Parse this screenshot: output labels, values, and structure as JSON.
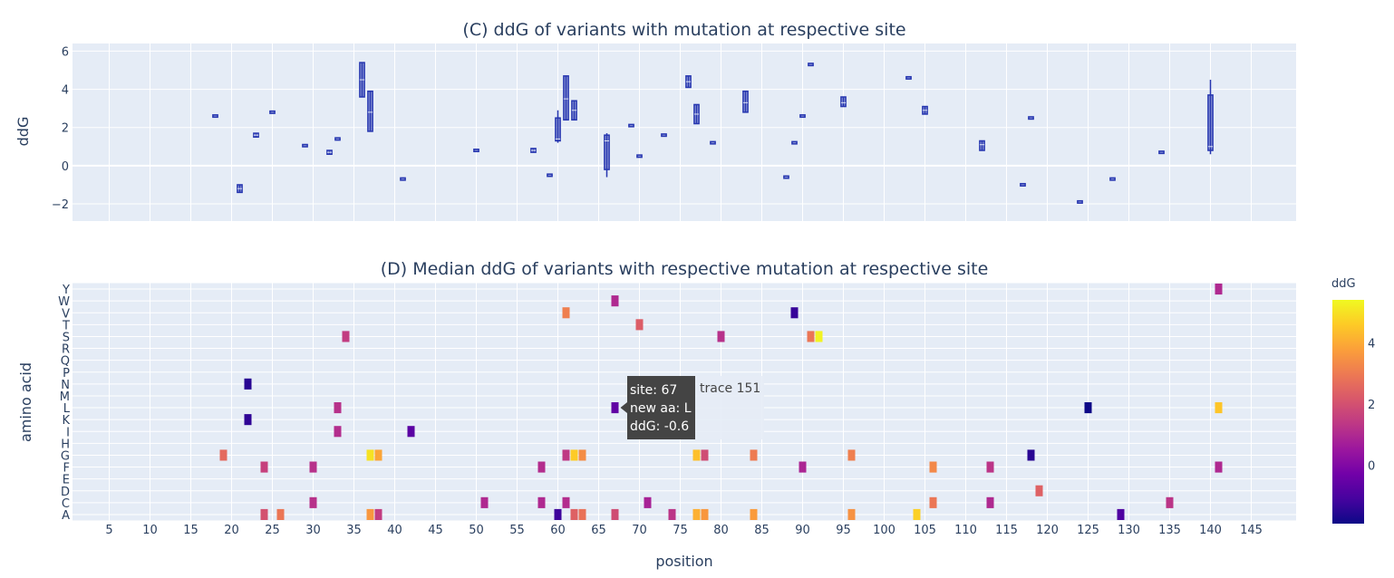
{
  "panel_c": {
    "title": "(C) ddG of variants with mutation at respective site",
    "ylabel": "ddG"
  },
  "panel_d": {
    "title": "(D) Median ddG of variants with respective mutation at respective site",
    "ylabel": "amino acid",
    "xlabel": "position"
  },
  "colorbar": {
    "title": "ddG",
    "ticks": [
      "4",
      "2",
      "0"
    ]
  },
  "tooltip": {
    "line1": "site: 67",
    "line2": "new aa: L",
    "line3": "ddG: -0.6",
    "trace": "trace 151"
  },
  "colors": {
    "plot_bg": "#e5ecf6",
    "box": "#2636b0",
    "colorscale": [
      "#0d0887",
      "#46039f",
      "#7201a8",
      "#9c179e",
      "#bd3786",
      "#d8576b",
      "#ed7953",
      "#fb9f3a",
      "#fdca26",
      "#f0f921"
    ]
  },
  "chart_data": [
    {
      "type": "box",
      "title": "(C) ddG of variants with mutation at respective site",
      "xlabel": "",
      "ylabel": "ddG",
      "xlim": [
        1,
        150
      ],
      "ylim": [
        -2.9,
        6.4
      ],
      "yticks": [
        -2,
        0,
        2,
        4,
        6
      ],
      "grid": true,
      "boxes": [
        {
          "x": 18,
          "min": 2.6,
          "q1": 2.6,
          "median": 2.6,
          "q3": 2.6,
          "max": 2.6
        },
        {
          "x": 21,
          "min": -1.4,
          "q1": -1.4,
          "median": -1.2,
          "q3": -1.0,
          "max": -1.0
        },
        {
          "x": 23,
          "min": 1.5,
          "q1": 1.5,
          "median": 1.6,
          "q3": 1.7,
          "max": 1.7
        },
        {
          "x": 25,
          "min": 2.8,
          "q1": 2.8,
          "median": 2.8,
          "q3": 2.8,
          "max": 2.8
        },
        {
          "x": 29,
          "min": 1.05,
          "q1": 1.05,
          "median": 1.05,
          "q3": 1.05,
          "max": 1.05
        },
        {
          "x": 32,
          "min": 0.6,
          "q1": 0.6,
          "median": 0.7,
          "q3": 0.8,
          "max": 0.8
        },
        {
          "x": 33,
          "min": 1.4,
          "q1": 1.4,
          "median": 1.4,
          "q3": 1.4,
          "max": 1.4
        },
        {
          "x": 36,
          "min": 3.6,
          "q1": 3.6,
          "median": 4.5,
          "q3": 5.4,
          "max": 5.4
        },
        {
          "x": 37,
          "min": 1.8,
          "q1": 1.8,
          "median": 2.8,
          "q3": 3.9,
          "max": 3.9
        },
        {
          "x": 41,
          "min": -0.7,
          "q1": -0.7,
          "median": -0.7,
          "q3": -0.7,
          "max": -0.7
        },
        {
          "x": 50,
          "min": 0.8,
          "q1": 0.8,
          "median": 0.8,
          "q3": 0.8,
          "max": 0.8
        },
        {
          "x": 57,
          "min": 0.7,
          "q1": 0.7,
          "median": 0.8,
          "q3": 0.9,
          "max": 0.9
        },
        {
          "x": 59,
          "min": -0.5,
          "q1": -0.5,
          "median": -0.5,
          "q3": -0.5,
          "max": -0.5
        },
        {
          "x": 60,
          "min": 1.2,
          "q1": 1.3,
          "median": 1.4,
          "q3": 2.5,
          "max": 2.9
        },
        {
          "x": 61,
          "min": 2.4,
          "q1": 2.4,
          "median": 3.5,
          "q3": 4.7,
          "max": 4.7
        },
        {
          "x": 62,
          "min": 2.4,
          "q1": 2.4,
          "median": 2.9,
          "q3": 3.4,
          "max": 3.4
        },
        {
          "x": 66,
          "min": -0.6,
          "q1": -0.2,
          "median": 1.3,
          "q3": 1.6,
          "max": 1.7
        },
        {
          "x": 69,
          "min": 2.1,
          "q1": 2.1,
          "median": 2.1,
          "q3": 2.1,
          "max": 2.1
        },
        {
          "x": 70,
          "min": 0.5,
          "q1": 0.5,
          "median": 0.5,
          "q3": 0.5,
          "max": 0.5
        },
        {
          "x": 73,
          "min": 1.6,
          "q1": 1.6,
          "median": 1.6,
          "q3": 1.6,
          "max": 1.6
        },
        {
          "x": 76,
          "min": 4.1,
          "q1": 4.1,
          "median": 4.4,
          "q3": 4.7,
          "max": 4.7
        },
        {
          "x": 77,
          "min": 2.2,
          "q1": 2.2,
          "median": 2.7,
          "q3": 3.2,
          "max": 3.2
        },
        {
          "x": 79,
          "min": 1.2,
          "q1": 1.2,
          "median": 1.2,
          "q3": 1.2,
          "max": 1.2
        },
        {
          "x": 83,
          "min": 2.8,
          "q1": 2.8,
          "median": 3.3,
          "q3": 3.9,
          "max": 3.9
        },
        {
          "x": 88,
          "min": -0.6,
          "q1": -0.6,
          "median": -0.6,
          "q3": -0.6,
          "max": -0.6
        },
        {
          "x": 89,
          "min": 1.2,
          "q1": 1.2,
          "median": 1.2,
          "q3": 1.2,
          "max": 1.2
        },
        {
          "x": 90,
          "min": 2.6,
          "q1": 2.6,
          "median": 2.6,
          "q3": 2.6,
          "max": 2.6
        },
        {
          "x": 91,
          "min": 5.3,
          "q1": 5.3,
          "median": 5.3,
          "q3": 5.3,
          "max": 5.3
        },
        {
          "x": 95,
          "min": 3.1,
          "q1": 3.1,
          "median": 3.3,
          "q3": 3.6,
          "max": 3.6
        },
        {
          "x": 103,
          "min": 4.6,
          "q1": 4.6,
          "median": 4.6,
          "q3": 4.6,
          "max": 4.6
        },
        {
          "x": 105,
          "min": 2.7,
          "q1": 2.7,
          "median": 2.9,
          "q3": 3.1,
          "max": 3.1
        },
        {
          "x": 112,
          "min": 0.8,
          "q1": 0.8,
          "median": 1.1,
          "q3": 1.3,
          "max": 1.3
        },
        {
          "x": 117,
          "min": -1.0,
          "q1": -1.0,
          "median": -1.0,
          "q3": -1.0,
          "max": -1.0
        },
        {
          "x": 118,
          "min": 2.5,
          "q1": 2.5,
          "median": 2.5,
          "q3": 2.5,
          "max": 2.5
        },
        {
          "x": 124,
          "min": -1.9,
          "q1": -1.9,
          "median": -1.9,
          "q3": -1.9,
          "max": -1.9
        },
        {
          "x": 128,
          "min": -0.7,
          "q1": -0.7,
          "median": -0.7,
          "q3": -0.7,
          "max": -0.7
        },
        {
          "x": 134,
          "min": 0.7,
          "q1": 0.7,
          "median": 0.7,
          "q3": 0.7,
          "max": 0.7
        },
        {
          "x": 140,
          "min": 0.6,
          "q1": 0.8,
          "median": 1.0,
          "q3": 3.7,
          "max": 4.5
        }
      ]
    },
    {
      "type": "heatmap",
      "title": "(D) Median ddG of variants with respective mutation at respective site",
      "xlabel": "position",
      "ylabel": "amino acid",
      "xlim": [
        1,
        150
      ],
      "xticks": [
        5,
        10,
        15,
        20,
        25,
        30,
        35,
        40,
        45,
        50,
        55,
        60,
        65,
        70,
        75,
        80,
        85,
        90,
        95,
        100,
        105,
        110,
        115,
        120,
        125,
        130,
        135,
        140,
        145
      ],
      "categories": [
        "A",
        "C",
        "D",
        "E",
        "F",
        "G",
        "H",
        "I",
        "K",
        "L",
        "M",
        "N",
        "P",
        "Q",
        "R",
        "S",
        "T",
        "V",
        "W",
        "Y"
      ],
      "zlim": [
        -1.9,
        5.4
      ],
      "cells": [
        {
          "x": 141,
          "aa": "Y",
          "v": 1.0
        },
        {
          "x": 67,
          "aa": "W",
          "v": 1.0
        },
        {
          "x": 61,
          "aa": "V",
          "v": 3.1
        },
        {
          "x": 89,
          "aa": "V",
          "v": -1.3
        },
        {
          "x": 70,
          "aa": "T",
          "v": 2.3
        },
        {
          "x": 34,
          "aa": "S",
          "v": 1.5
        },
        {
          "x": 80,
          "aa": "S",
          "v": 1.2
        },
        {
          "x": 91,
          "aa": "S",
          "v": 2.9
        },
        {
          "x": 92,
          "aa": "S",
          "v": 5.3
        },
        {
          "x": 22,
          "aa": "N",
          "v": -1.5
        },
        {
          "x": 33,
          "aa": "L",
          "v": 1.2
        },
        {
          "x": 67,
          "aa": "L",
          "v": -0.6
        },
        {
          "x": 125,
          "aa": "L",
          "v": -1.9
        },
        {
          "x": 141,
          "aa": "L",
          "v": 4.5
        },
        {
          "x": 22,
          "aa": "K",
          "v": -1.4
        },
        {
          "x": 33,
          "aa": "I",
          "v": 1.1
        },
        {
          "x": 42,
          "aa": "I",
          "v": -0.7
        },
        {
          "x": 19,
          "aa": "G",
          "v": 2.6
        },
        {
          "x": 37,
          "aa": "G",
          "v": 5.0
        },
        {
          "x": 38,
          "aa": "G",
          "v": 3.9
        },
        {
          "x": 61,
          "aa": "G",
          "v": 1.4
        },
        {
          "x": 62,
          "aa": "G",
          "v": 4.6
        },
        {
          "x": 63,
          "aa": "G",
          "v": 3.4
        },
        {
          "x": 77,
          "aa": "G",
          "v": 4.4
        },
        {
          "x": 78,
          "aa": "G",
          "v": 1.9
        },
        {
          "x": 84,
          "aa": "G",
          "v": 3.0
        },
        {
          "x": 96,
          "aa": "G",
          "v": 3.1
        },
        {
          "x": 118,
          "aa": "G",
          "v": -1.5
        },
        {
          "x": 24,
          "aa": "F",
          "v": 1.6
        },
        {
          "x": 30,
          "aa": "F",
          "v": 1.2
        },
        {
          "x": 58,
          "aa": "F",
          "v": 1.1
        },
        {
          "x": 90,
          "aa": "F",
          "v": 0.9
        },
        {
          "x": 106,
          "aa": "F",
          "v": 3.3
        },
        {
          "x": 113,
          "aa": "F",
          "v": 1.3
        },
        {
          "x": 141,
          "aa": "F",
          "v": 1.0
        },
        {
          "x": 119,
          "aa": "D",
          "v": 2.4
        },
        {
          "x": 30,
          "aa": "C",
          "v": 1.2
        },
        {
          "x": 51,
          "aa": "C",
          "v": 1.0
        },
        {
          "x": 58,
          "aa": "C",
          "v": 1.0
        },
        {
          "x": 61,
          "aa": "C",
          "v": 1.1
        },
        {
          "x": 71,
          "aa": "C",
          "v": 0.8
        },
        {
          "x": 106,
          "aa": "C",
          "v": 2.9
        },
        {
          "x": 113,
          "aa": "C",
          "v": 1.0
        },
        {
          "x": 135,
          "aa": "C",
          "v": 1.3
        },
        {
          "x": 24,
          "aa": "A",
          "v": 2.0
        },
        {
          "x": 26,
          "aa": "A",
          "v": 2.9
        },
        {
          "x": 37,
          "aa": "A",
          "v": 3.6
        },
        {
          "x": 38,
          "aa": "A",
          "v": 1.5
        },
        {
          "x": 60,
          "aa": "A",
          "v": -1.2
        },
        {
          "x": 62,
          "aa": "A",
          "v": 2.4
        },
        {
          "x": 63,
          "aa": "A",
          "v": 2.8
        },
        {
          "x": 67,
          "aa": "A",
          "v": 1.9
        },
        {
          "x": 74,
          "aa": "A",
          "v": 1.3
        },
        {
          "x": 77,
          "aa": "A",
          "v": 4.1
        },
        {
          "x": 78,
          "aa": "A",
          "v": 3.6
        },
        {
          "x": 84,
          "aa": "A",
          "v": 3.7
        },
        {
          "x": 96,
          "aa": "A",
          "v": 3.5
        },
        {
          "x": 104,
          "aa": "A",
          "v": 4.7
        },
        {
          "x": 129,
          "aa": "A",
          "v": -0.9
        }
      ]
    }
  ]
}
